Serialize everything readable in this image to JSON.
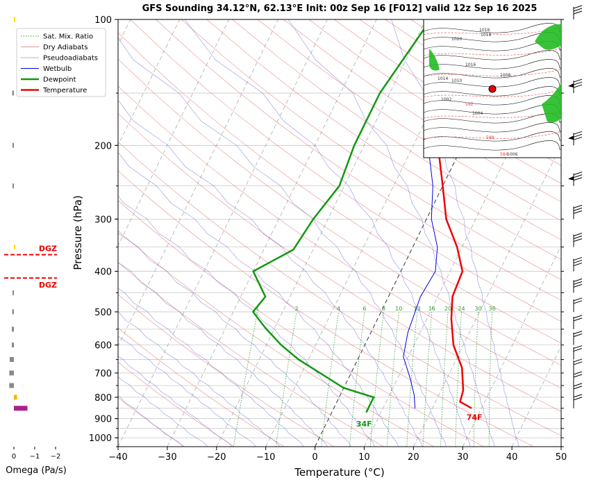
{
  "chart_data": {
    "type": "line",
    "title": "GFS Sounding 34.12°N, 62.13°E Init: 00z Sep 16 [F012] valid 12z Sep 16 2025",
    "xlabel": "Temperature (°C)",
    "ylabel": "Pressure (hPa)",
    "xlim": [
      -40,
      50
    ],
    "ylim": [
      1050,
      100
    ],
    "y_scale": "log",
    "x_ticks": [
      "−40",
      "−30",
      "−20",
      "−10",
      "0",
      "10",
      "20",
      "30",
      "40",
      "50"
    ],
    "y_ticks": [
      "100",
      "200",
      "300",
      "400",
      "500",
      "600",
      "700",
      "800",
      "900",
      "1000"
    ],
    "legend": {
      "position": "top-left",
      "entries": [
        "Sat. Mix. Ratio",
        "Dry Adiabats",
        "Pseudoadiabats",
        "Wetbulb",
        "Dewpoint",
        "Temperature"
      ]
    },
    "series": [
      {
        "name": "Temperature",
        "color": "#ee0000",
        "points": [
          [
            28,
            850
          ],
          [
            25,
            820
          ],
          [
            24.5,
            770
          ],
          [
            22,
            680
          ],
          [
            18,
            600
          ],
          [
            15,
            520
          ],
          [
            13,
            460
          ],
          [
            12.5,
            400
          ],
          [
            9,
            350
          ],
          [
            4,
            300
          ],
          [
            0,
            250
          ],
          [
            -5,
            200
          ],
          [
            -11,
            150
          ],
          [
            -12.5,
            100
          ]
        ]
      },
      {
        "name": "Dewpoint",
        "color": "#119911",
        "points": [
          [
            7,
            870
          ],
          [
            7,
            800
          ],
          [
            0,
            760
          ],
          [
            -12,
            650
          ],
          [
            -17,
            600
          ],
          [
            -22,
            545
          ],
          [
            -26,
            500
          ],
          [
            -25,
            460
          ],
          [
            -30,
            400
          ],
          [
            -24,
            355
          ],
          [
            -23,
            300
          ],
          [
            -21,
            250
          ],
          [
            -22,
            200
          ],
          [
            -22,
            150
          ],
          [
            -19,
            100
          ]
        ]
      },
      {
        "name": "Wetbulb",
        "color": "#0000dd",
        "points": [
          [
            16.5,
            850
          ],
          [
            15,
            790
          ],
          [
            12.5,
            720
          ],
          [
            9,
            640
          ],
          [
            7.5,
            560
          ],
          [
            6.5,
            460
          ],
          [
            7,
            400
          ],
          [
            5,
            350
          ],
          [
            1,
            300
          ],
          [
            -2,
            250
          ],
          [
            -7,
            200
          ],
          [
            -11,
            150
          ]
        ]
      }
    ],
    "mixing_ratio_labels": [
      "1",
      "2",
      "4",
      "6",
      "8",
      "10",
      "13",
      "16",
      "20",
      "24",
      "30",
      "36"
    ],
    "surface_labels": {
      "temperature": "74F",
      "dewpoint": "34F"
    }
  },
  "omega": {
    "xlabel": "Omega (Pa/s)",
    "ticks": [
      "0",
      "−1",
      "−2"
    ],
    "dgz_label": "DGZ",
    "bars": [
      {
        "p": 100,
        "v": 0.02,
        "color": "#ffdd00"
      },
      {
        "p": 150,
        "v": -0.08,
        "color": "#888888"
      },
      {
        "p": 200,
        "v": -0.03,
        "color": "#888888"
      },
      {
        "p": 250,
        "v": -0.02,
        "color": "#888888"
      },
      {
        "p": 350,
        "v": 0.02,
        "color": "#ffdd00"
      },
      {
        "p": 450,
        "v": -0.05,
        "color": "#888888"
      },
      {
        "p": 500,
        "v": -0.08,
        "color": "#888888"
      },
      {
        "p": 550,
        "v": -0.1,
        "color": "#888888"
      },
      {
        "p": 600,
        "v": -0.1,
        "color": "#888888"
      },
      {
        "p": 650,
        "v": -0.2,
        "color": "#888888"
      },
      {
        "p": 700,
        "v": -0.22,
        "color": "#888888"
      },
      {
        "p": 750,
        "v": -0.22,
        "color": "#888888"
      },
      {
        "p": 800,
        "v": 0.15,
        "color": "#f5b800"
      },
      {
        "p": 850,
        "v": 0.65,
        "color": "#aa2288"
      }
    ],
    "dgz_pressures": [
      365,
      415
    ]
  },
  "inset_map": {
    "labels": [
      "1016",
      "1020",
      "1018",
      "1016",
      "1014",
      "1010",
      "1008",
      "1004",
      "1002",
      "592",
      "588",
      "584",
      "1006"
    ]
  }
}
